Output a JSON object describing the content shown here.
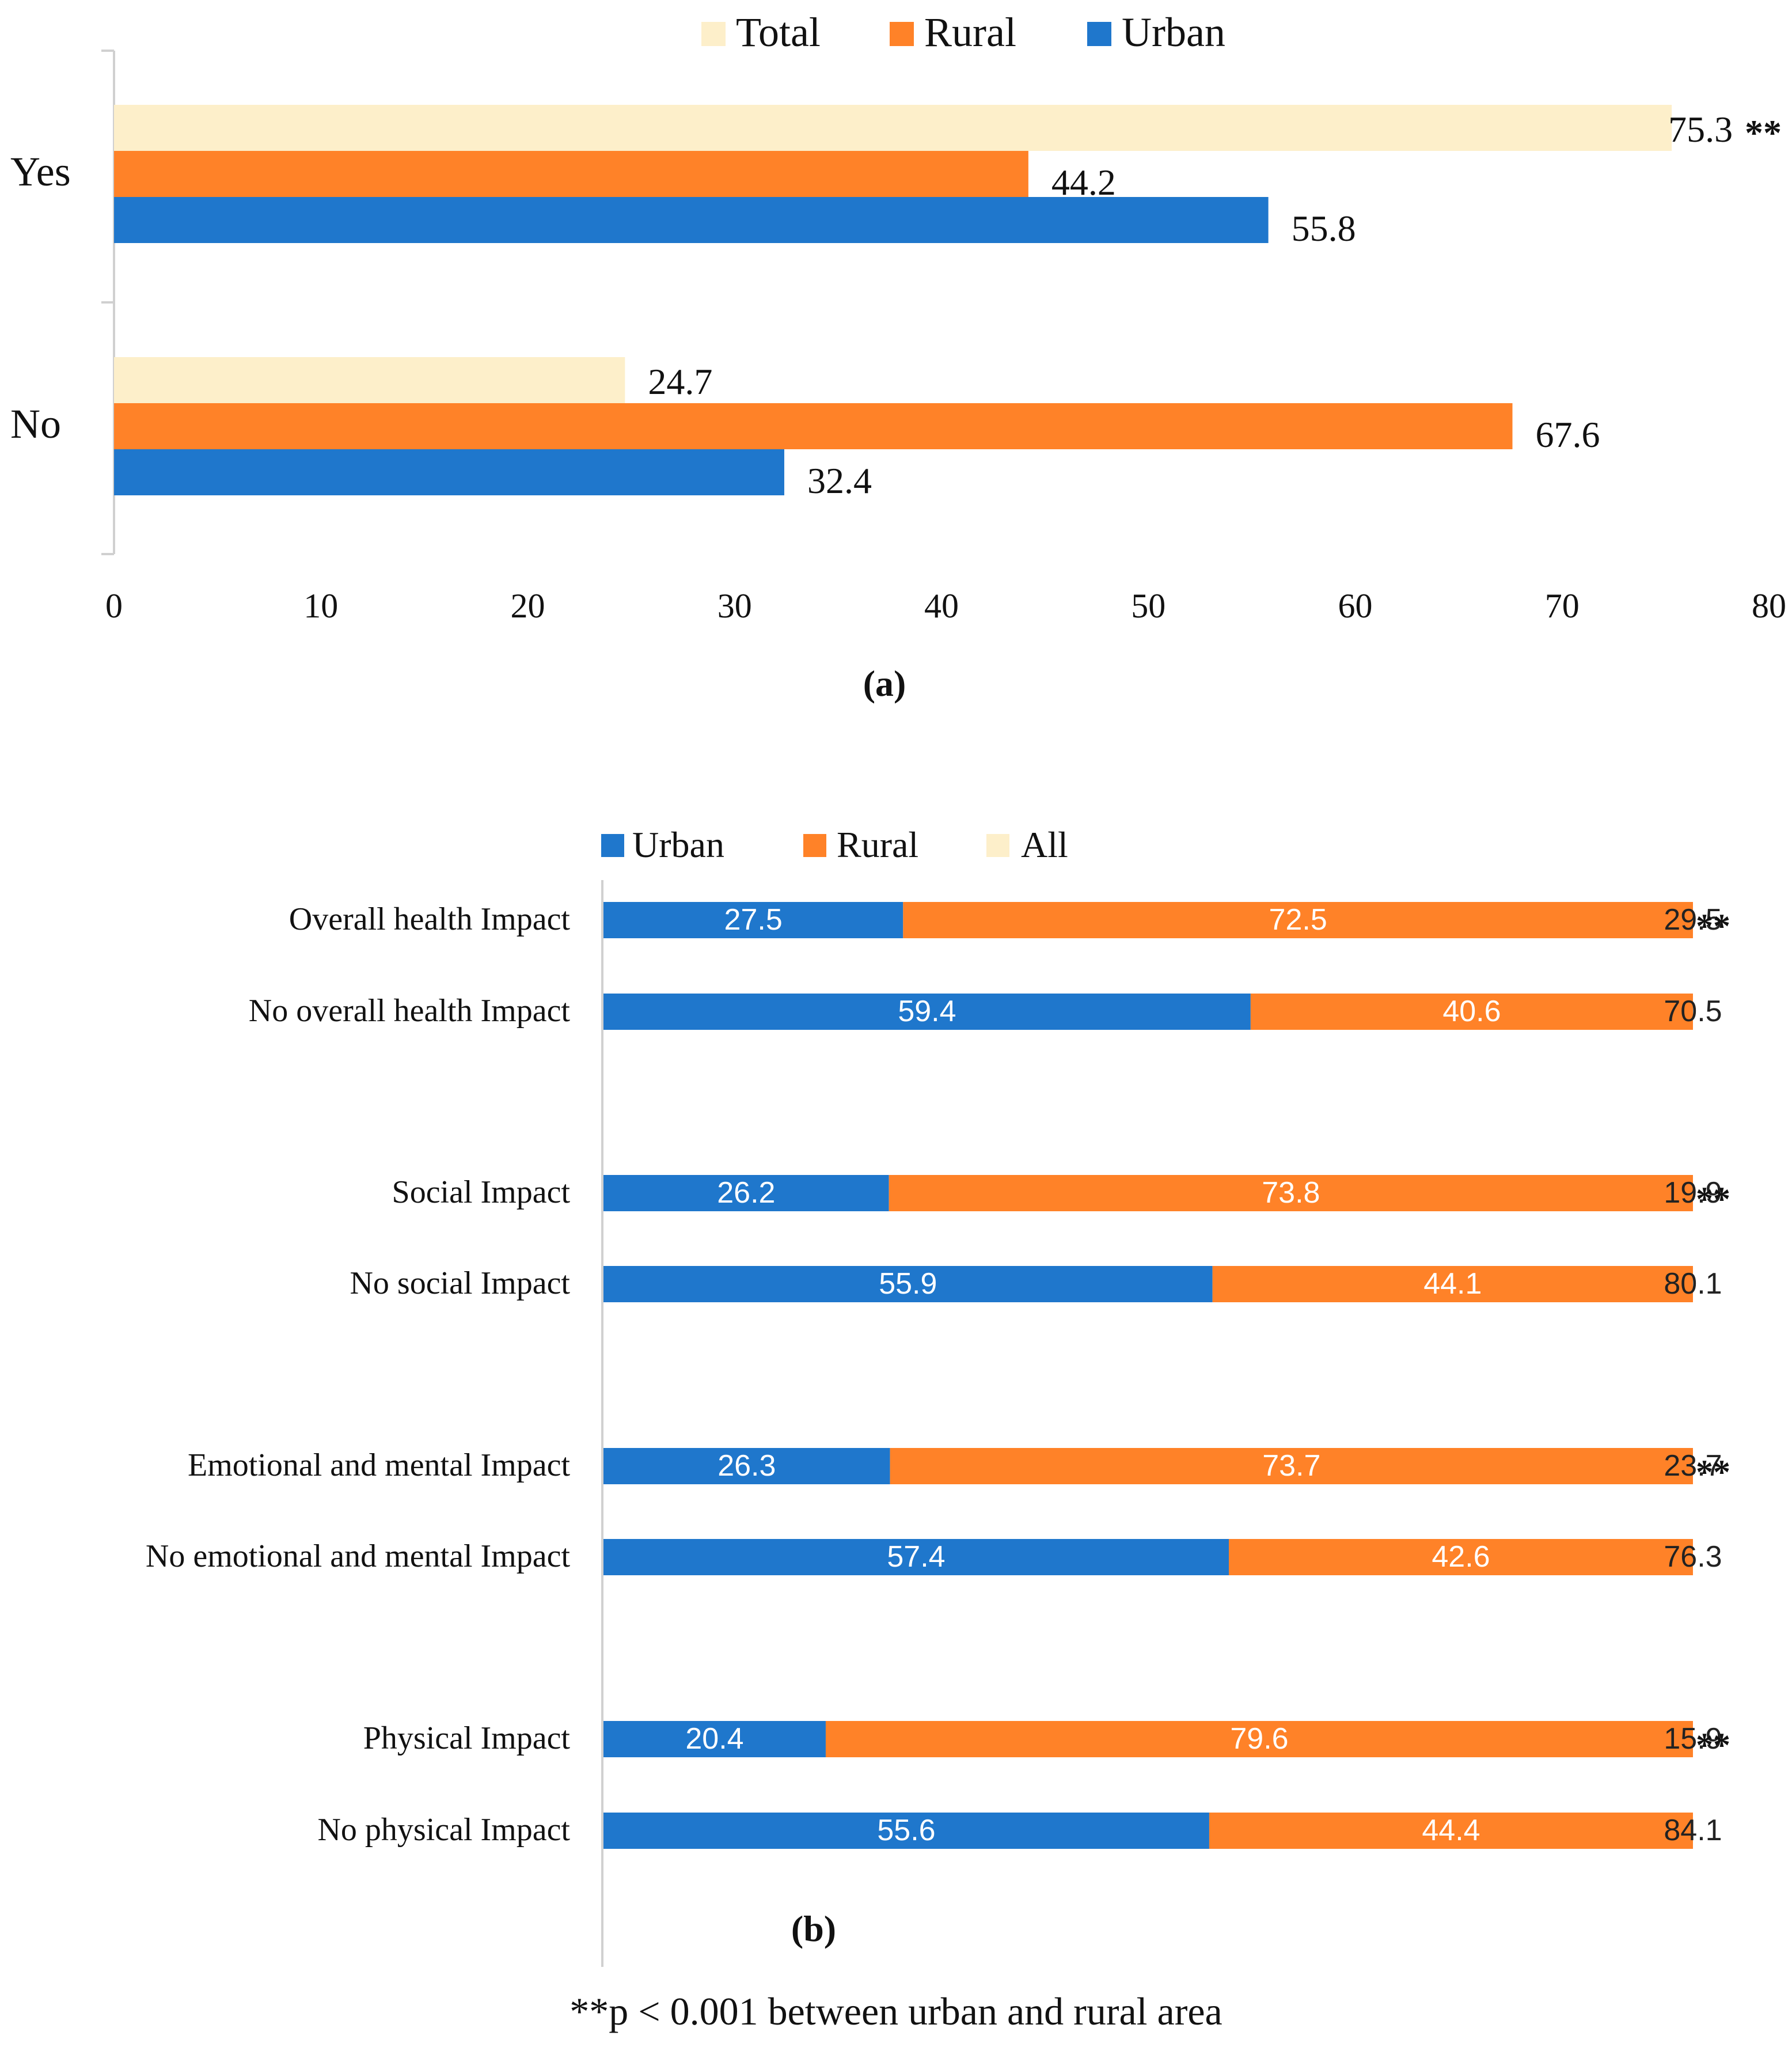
{
  "colors": {
    "total": "#FDEFCA",
    "rural": "#FF8228",
    "urban": "#1F77CC",
    "axis": "#D0D0D0",
    "text": "#111111"
  },
  "footnote": "**p < 0.001 between urban and rural area",
  "chart_data": [
    {
      "type": "bar",
      "orientation": "horizontal",
      "panel_label": "(a)",
      "title": "",
      "xlabel": "",
      "ylabel": "",
      "xlim": [
        0,
        80
      ],
      "x_ticks": [
        "0",
        "10",
        "20",
        "30",
        "40",
        "50",
        "60",
        "70",
        "80"
      ],
      "categories": [
        "Yes",
        "No"
      ],
      "legend": [
        "Total",
        "Rural",
        "Urban"
      ],
      "legend_position": "top",
      "series": [
        {
          "name": "Total",
          "values": [
            75.3,
            24.7
          ],
          "labels": [
            "75.3",
            "24.7"
          ]
        },
        {
          "name": "Rural",
          "values": [
            44.2,
            67.6
          ],
          "labels": [
            "44.2",
            "67.6"
          ]
        },
        {
          "name": "Urban",
          "values": [
            55.8,
            32.4
          ],
          "labels": [
            "55.8",
            "32.4"
          ]
        }
      ],
      "significance": [
        "**",
        ""
      ]
    },
    {
      "type": "bar",
      "orientation": "horizontal",
      "stacked": true,
      "panel_label": "(b)",
      "title": "",
      "xlabel": "",
      "ylabel": "",
      "legend": [
        "Urban",
        "Rural",
        "All"
      ],
      "legend_position": "top",
      "categories": [
        "Overall health Impact",
        "No overall health Impact",
        "Social Impact",
        "No social Impact",
        "Emotional and mental Impact",
        "No emotional and mental Impact",
        "Physical Impact",
        "No physical Impact"
      ],
      "series": [
        {
          "name": "Urban",
          "values": [
            27.5,
            59.4,
            26.2,
            55.9,
            26.3,
            57.4,
            20.4,
            55.6
          ]
        },
        {
          "name": "Rural",
          "values": [
            72.5,
            40.6,
            73.8,
            44.1,
            73.7,
            42.6,
            79.6,
            44.4
          ]
        },
        {
          "name": "All",
          "values": [
            29.5,
            70.5,
            19.9,
            80.1,
            23.7,
            76.3,
            15.9,
            84.1
          ]
        }
      ],
      "significance": [
        "**",
        "",
        "**",
        "",
        "**",
        "",
        "**",
        ""
      ]
    }
  ]
}
